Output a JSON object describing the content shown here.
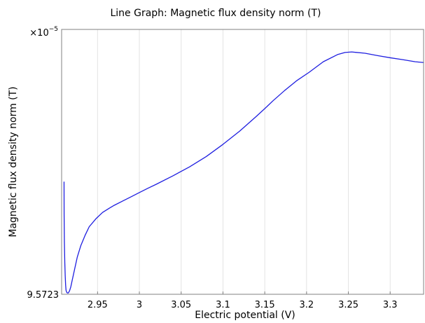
{
  "chart_data": {
    "type": "line",
    "title": "Line Graph: Magnetic flux density norm (T)",
    "xlabel": "Electric potential (V)",
    "ylabel": "Magnetic flux density norm (T)",
    "y_exponent_base": "×10",
    "y_exponent_power": "−5",
    "y_bottom_tick_label": "9.5723",
    "xlim": [
      2.907,
      3.34
    ],
    "ylim": [
      0,
      1
    ],
    "x_ticks": [
      2.95,
      3.0,
      3.05,
      3.1,
      3.15,
      3.2,
      3.25,
      3.3
    ],
    "x_tick_labels": [
      "2.95",
      "3",
      "3.05",
      "3.1",
      "3.15",
      "3.2",
      "3.25",
      "3.3"
    ],
    "grid": true,
    "color": "#1f1fe0",
    "series": [
      {
        "x": [
          2.9099,
          2.91,
          2.9103,
          2.9108,
          2.9113,
          2.9118,
          2.9123,
          2.913,
          2.9138,
          2.915,
          2.9165,
          2.918,
          2.9196,
          2.9225,
          2.9257,
          2.93,
          2.935,
          2.94,
          2.948,
          2.956,
          2.964,
          2.97,
          2.98,
          2.99,
          3.0,
          3.01,
          3.02,
          3.04,
          3.06,
          3.08,
          3.1,
          3.12,
          3.14,
          3.15,
          3.16,
          3.174,
          3.188,
          3.203,
          3.22,
          3.237,
          3.246,
          3.254,
          3.27,
          3.285,
          3.3,
          3.315,
          3.33,
          3.34
        ],
        "y": [
          0.424,
          0.3,
          0.2,
          0.12,
          0.07,
          0.035,
          0.015,
          0.008,
          0.005,
          0.005,
          0.013,
          0.028,
          0.052,
          0.094,
          0.14,
          0.184,
          0.222,
          0.255,
          0.285,
          0.309,
          0.325,
          0.336,
          0.352,
          0.368,
          0.384,
          0.4,
          0.415,
          0.447,
          0.481,
          0.52,
          0.566,
          0.616,
          0.672,
          0.701,
          0.731,
          0.77,
          0.806,
          0.838,
          0.878,
          0.905,
          0.913,
          0.915,
          0.91,
          0.901,
          0.893,
          0.886,
          0.878,
          0.875
        ]
      }
    ]
  }
}
